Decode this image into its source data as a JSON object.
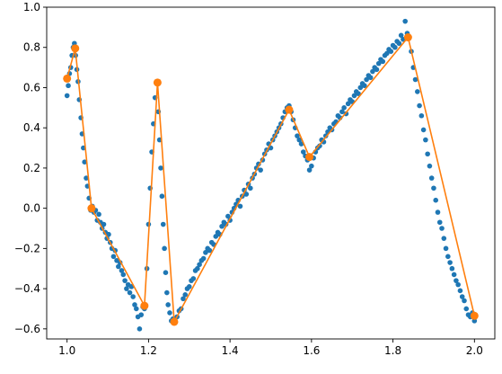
{
  "chart_data": {
    "type": "scatter",
    "title": "",
    "xlabel": "",
    "ylabel": "",
    "xlim": [
      0.95,
      2.05
    ],
    "ylim": [
      -0.65,
      1.0
    ],
    "grid": false,
    "x_ticks": [
      "1.0",
      "1.2",
      "1.4",
      "1.6",
      "1.8",
      "2.0"
    ],
    "x_tick_values": [
      1.0,
      1.2,
      1.4,
      1.6,
      1.8,
      2.0
    ],
    "y_ticks": [
      "−0.6",
      "−0.4",
      "−0.2",
      "0.0",
      "0.2",
      "0.4",
      "0.6",
      "0.8",
      "1.0"
    ],
    "y_tick_values": [
      -0.6,
      -0.4,
      -0.2,
      0.0,
      0.2,
      0.4,
      0.6,
      0.8,
      1.0
    ],
    "scatter_color": "#1f77b4",
    "line_color": "#ff7f0e",
    "series": [
      {
        "type": "scatter",
        "points": [
          [
            1.0,
            0.56
          ],
          [
            1.003,
            0.61
          ],
          [
            1.006,
            0.67
          ],
          [
            1.009,
            0.7
          ],
          [
            1.012,
            0.76
          ],
          [
            1.015,
            0.8
          ],
          [
            1.018,
            0.82
          ],
          [
            1.021,
            0.76
          ],
          [
            1.024,
            0.69
          ],
          [
            1.027,
            0.63
          ],
          [
            1.03,
            0.54
          ],
          [
            1.034,
            0.45
          ],
          [
            1.037,
            0.37
          ],
          [
            1.04,
            0.3
          ],
          [
            1.043,
            0.23
          ],
          [
            1.047,
            0.15
          ],
          [
            1.05,
            0.11
          ],
          [
            1.054,
            0.05
          ],
          [
            1.058,
            -0.01
          ],
          [
            1.062,
            0.01
          ],
          [
            1.066,
            -0.02
          ],
          [
            1.07,
            -0.01
          ],
          [
            1.074,
            -0.06
          ],
          [
            1.078,
            -0.03
          ],
          [
            1.082,
            -0.07
          ],
          [
            1.086,
            -0.1
          ],
          [
            1.09,
            -0.08
          ],
          [
            1.094,
            -0.12
          ],
          [
            1.098,
            -0.15
          ],
          [
            1.102,
            -0.13
          ],
          [
            1.106,
            -0.17
          ],
          [
            1.11,
            -0.2
          ],
          [
            1.114,
            -0.24
          ],
          [
            1.118,
            -0.21
          ],
          [
            1.122,
            -0.26
          ],
          [
            1.126,
            -0.29
          ],
          [
            1.13,
            -0.27
          ],
          [
            1.134,
            -0.31
          ],
          [
            1.138,
            -0.33
          ],
          [
            1.142,
            -0.36
          ],
          [
            1.146,
            -0.4
          ],
          [
            1.15,
            -0.38
          ],
          [
            1.154,
            -0.42
          ],
          [
            1.158,
            -0.39
          ],
          [
            1.162,
            -0.44
          ],
          [
            1.166,
            -0.48
          ],
          [
            1.17,
            -0.5
          ],
          [
            1.174,
            -0.54
          ],
          [
            1.178,
            -0.6
          ],
          [
            1.182,
            -0.53
          ],
          [
            1.186,
            -0.49
          ],
          [
            1.19,
            -0.5
          ],
          [
            1.196,
            -0.3
          ],
          [
            1.2,
            -0.08
          ],
          [
            1.204,
            0.1
          ],
          [
            1.208,
            0.28
          ],
          [
            1.212,
            0.42
          ],
          [
            1.216,
            0.55
          ],
          [
            1.22,
            0.62
          ],
          [
            1.224,
            0.48
          ],
          [
            1.227,
            0.34
          ],
          [
            1.23,
            0.2
          ],
          [
            1.233,
            0.06
          ],
          [
            1.236,
            -0.08
          ],
          [
            1.239,
            -0.2
          ],
          [
            1.242,
            -0.32
          ],
          [
            1.245,
            -0.42
          ],
          [
            1.248,
            -0.48
          ],
          [
            1.252,
            -0.52
          ],
          [
            1.256,
            -0.56
          ],
          [
            1.26,
            -0.55
          ],
          [
            1.265,
            -0.57
          ],
          [
            1.27,
            -0.54
          ],
          [
            1.275,
            -0.51
          ],
          [
            1.28,
            -0.5
          ],
          [
            1.285,
            -0.45
          ],
          [
            1.29,
            -0.43
          ],
          [
            1.295,
            -0.4
          ],
          [
            1.3,
            -0.39
          ],
          [
            1.305,
            -0.36
          ],
          [
            1.31,
            -0.35
          ],
          [
            1.315,
            -0.31
          ],
          [
            1.32,
            -0.3
          ],
          [
            1.325,
            -0.28
          ],
          [
            1.33,
            -0.26
          ],
          [
            1.335,
            -0.25
          ],
          [
            1.34,
            -0.22
          ],
          [
            1.345,
            -0.2
          ],
          [
            1.35,
            -0.21
          ],
          [
            1.355,
            -0.17
          ],
          [
            1.36,
            -0.18
          ],
          [
            1.365,
            -0.14
          ],
          [
            1.37,
            -0.12
          ],
          [
            1.375,
            -0.13
          ],
          [
            1.38,
            -0.09
          ],
          [
            1.385,
            -0.07
          ],
          [
            1.39,
            -0.08
          ],
          [
            1.395,
            -0.04
          ],
          [
            1.4,
            -0.06
          ],
          [
            1.405,
            -0.02
          ],
          [
            1.41,
            0.0
          ],
          [
            1.415,
            0.02
          ],
          [
            1.42,
            0.04
          ],
          [
            1.425,
            0.01
          ],
          [
            1.43,
            0.06
          ],
          [
            1.435,
            0.09
          ],
          [
            1.44,
            0.07
          ],
          [
            1.445,
            0.12
          ],
          [
            1.45,
            0.1
          ],
          [
            1.455,
            0.15
          ],
          [
            1.46,
            0.17
          ],
          [
            1.465,
            0.2
          ],
          [
            1.47,
            0.22
          ],
          [
            1.475,
            0.19
          ],
          [
            1.48,
            0.24
          ],
          [
            1.485,
            0.27
          ],
          [
            1.49,
            0.29
          ],
          [
            1.495,
            0.32
          ],
          [
            1.5,
            0.3
          ],
          [
            1.505,
            0.34
          ],
          [
            1.51,
            0.36
          ],
          [
            1.515,
            0.38
          ],
          [
            1.52,
            0.4
          ],
          [
            1.525,
            0.42
          ],
          [
            1.53,
            0.45
          ],
          [
            1.535,
            0.48
          ],
          [
            1.54,
            0.5
          ],
          [
            1.545,
            0.51
          ],
          [
            1.55,
            0.48
          ],
          [
            1.555,
            0.44
          ],
          [
            1.56,
            0.4
          ],
          [
            1.565,
            0.36
          ],
          [
            1.57,
            0.34
          ],
          [
            1.575,
            0.32
          ],
          [
            1.58,
            0.28
          ],
          [
            1.585,
            0.26
          ],
          [
            1.59,
            0.24
          ],
          [
            1.595,
            0.19
          ],
          [
            1.6,
            0.21
          ],
          [
            1.605,
            0.25
          ],
          [
            1.61,
            0.28
          ],
          [
            1.615,
            0.3
          ],
          [
            1.62,
            0.31
          ],
          [
            1.625,
            0.34
          ],
          [
            1.63,
            0.33
          ],
          [
            1.635,
            0.36
          ],
          [
            1.64,
            0.38
          ],
          [
            1.645,
            0.4
          ],
          [
            1.65,
            0.39
          ],
          [
            1.655,
            0.42
          ],
          [
            1.66,
            0.43
          ],
          [
            1.665,
            0.46
          ],
          [
            1.67,
            0.45
          ],
          [
            1.675,
            0.48
          ],
          [
            1.68,
            0.5
          ],
          [
            1.685,
            0.47
          ],
          [
            1.69,
            0.52
          ],
          [
            1.695,
            0.54
          ],
          [
            1.7,
            0.53
          ],
          [
            1.705,
            0.56
          ],
          [
            1.71,
            0.58
          ],
          [
            1.715,
            0.57
          ],
          [
            1.72,
            0.6
          ],
          [
            1.725,
            0.62
          ],
          [
            1.73,
            0.61
          ],
          [
            1.735,
            0.64
          ],
          [
            1.74,
            0.66
          ],
          [
            1.745,
            0.65
          ],
          [
            1.75,
            0.68
          ],
          [
            1.755,
            0.7
          ],
          [
            1.76,
            0.69
          ],
          [
            1.765,
            0.72
          ],
          [
            1.77,
            0.74
          ],
          [
            1.775,
            0.73
          ],
          [
            1.78,
            0.76
          ],
          [
            1.785,
            0.77
          ],
          [
            1.79,
            0.79
          ],
          [
            1.795,
            0.78
          ],
          [
            1.8,
            0.81
          ],
          [
            1.805,
            0.8
          ],
          [
            1.81,
            0.83
          ],
          [
            1.815,
            0.82
          ],
          [
            1.82,
            0.86
          ],
          [
            1.825,
            0.84
          ],
          [
            1.83,
            0.93
          ],
          [
            1.835,
            0.87
          ],
          [
            1.84,
            0.85
          ],
          [
            1.845,
            0.78
          ],
          [
            1.85,
            0.7
          ],
          [
            1.855,
            0.64
          ],
          [
            1.86,
            0.58
          ],
          [
            1.865,
            0.51
          ],
          [
            1.87,
            0.46
          ],
          [
            1.875,
            0.39
          ],
          [
            1.88,
            0.34
          ],
          [
            1.885,
            0.27
          ],
          [
            1.89,
            0.21
          ],
          [
            1.895,
            0.15
          ],
          [
            1.9,
            0.1
          ],
          [
            1.905,
            0.04
          ],
          [
            1.91,
            -0.02
          ],
          [
            1.915,
            -0.07
          ],
          [
            1.92,
            -0.1
          ],
          [
            1.925,
            -0.15
          ],
          [
            1.93,
            -0.2
          ],
          [
            1.935,
            -0.24
          ],
          [
            1.94,
            -0.27
          ],
          [
            1.945,
            -0.3
          ],
          [
            1.95,
            -0.33
          ],
          [
            1.955,
            -0.36
          ],
          [
            1.96,
            -0.38
          ],
          [
            1.965,
            -0.41
          ],
          [
            1.97,
            -0.44
          ],
          [
            1.975,
            -0.46
          ],
          [
            1.98,
            -0.5
          ],
          [
            1.985,
            -0.53
          ],
          [
            1.99,
            -0.54
          ],
          [
            1.995,
            -0.52
          ],
          [
            2.0,
            -0.56
          ]
        ]
      },
      {
        "type": "line",
        "points": [
          [
            1.0,
            0.645
          ],
          [
            1.02,
            0.795
          ],
          [
            1.06,
            0.0
          ],
          [
            1.19,
            -0.485
          ],
          [
            1.222,
            0.625
          ],
          [
            1.263,
            -0.565
          ],
          [
            1.545,
            0.49
          ],
          [
            1.595,
            0.255
          ],
          [
            1.837,
            0.85
          ],
          [
            2.0,
            -0.535
          ]
        ]
      }
    ]
  }
}
